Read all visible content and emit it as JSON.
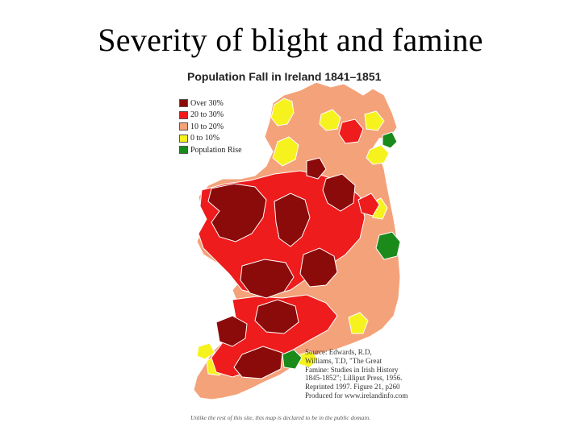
{
  "slide": {
    "title": "Severity of blight and famine"
  },
  "map": {
    "title": "Population Fall in Ireland 1841–1851",
    "legend": [
      {
        "label": "Over 30%",
        "color": "#8b0a0a"
      },
      {
        "label": "20 to 30%",
        "color": "#ee1c1c"
      },
      {
        "label": "10 to 20%",
        "color": "#f4a27a"
      },
      {
        "label": "0 to 10%",
        "color": "#f6f21e"
      },
      {
        "label": "Population Rise",
        "color": "#1a8a1a"
      }
    ],
    "source_lines": [
      "Source: Edwards, R.D,",
      "Williams, T.D, \"The Great",
      "Famine: Studies in Irish History",
      "1845-1852\"; Lilliput Press, 1956.",
      "Reprinted 1997. Figure 21, p260",
      "Produced for www.irelandinfo.com"
    ],
    "public_domain_note": "Unlike the rest of this site, this map is declared to be in the public domain."
  }
}
